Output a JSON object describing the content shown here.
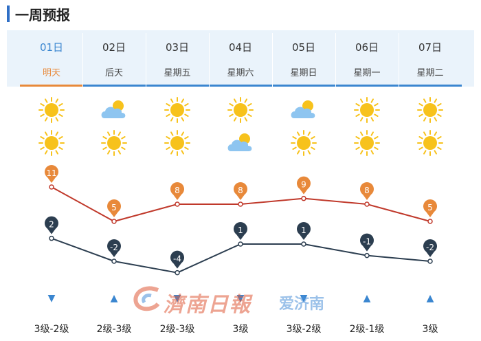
{
  "header": {
    "title": "一周预报"
  },
  "days": [
    {
      "date": "01日",
      "label": "明天",
      "day_icon": "sun-icon",
      "night_icon": "sun-icon",
      "high": 11,
      "low": 2,
      "wind": "3级-2级",
      "wind_dir": "down"
    },
    {
      "date": "02日",
      "label": "后天",
      "day_icon": "partly-cloudy-icon",
      "night_icon": "sun-icon",
      "high": 5,
      "low": -2,
      "wind": "2级-3级",
      "wind_dir": "up"
    },
    {
      "date": "03日",
      "label": "星期五",
      "day_icon": "sun-icon",
      "night_icon": "sun-icon",
      "high": 8,
      "low": -4,
      "wind": "2级-3级",
      "wind_dir": "down"
    },
    {
      "date": "04日",
      "label": "星期六",
      "day_icon": "sun-icon",
      "night_icon": "partly-cloudy-icon",
      "high": 8,
      "low": 1,
      "wind": "3级",
      "wind_dir": "down"
    },
    {
      "date": "05日",
      "label": "星期日",
      "day_icon": "partly-cloudy-icon",
      "night_icon": "sun-icon",
      "high": 9,
      "low": 1,
      "wind": "3级-2级",
      "wind_dir": "down"
    },
    {
      "date": "06日",
      "label": "星期一",
      "day_icon": "sun-icon",
      "night_icon": "sun-icon",
      "high": 8,
      "low": -1,
      "wind": "2级-1级",
      "wind_dir": "up"
    },
    {
      "date": "07日",
      "label": "星期二",
      "day_icon": "sun-icon",
      "night_icon": "sun-icon",
      "high": 5,
      "low": -2,
      "wind": "3级",
      "wind_dir": "up"
    }
  ],
  "watermark": {
    "text1": "濟南日報",
    "text2": "爱济南"
  },
  "colors": {
    "accent": "#3a86d0",
    "active": "#e8893a",
    "high_line": "#c0392b",
    "high_marker": "#e8893a",
    "low_line": "#2c3e50",
    "low_marker": "#2c3e50",
    "sun": "#f7c21c",
    "cloud": "#8ec5f0"
  },
  "chart_data": {
    "type": "line",
    "categories": [
      "01日",
      "02日",
      "03日",
      "04日",
      "05日",
      "06日",
      "07日"
    ],
    "series": [
      {
        "values": [
          11,
          5,
          8,
          8,
          9,
          8,
          5
        ]
      },
      {
        "values": [
          2,
          -2,
          -4,
          1,
          1,
          -1,
          -2
        ]
      }
    ]
  }
}
